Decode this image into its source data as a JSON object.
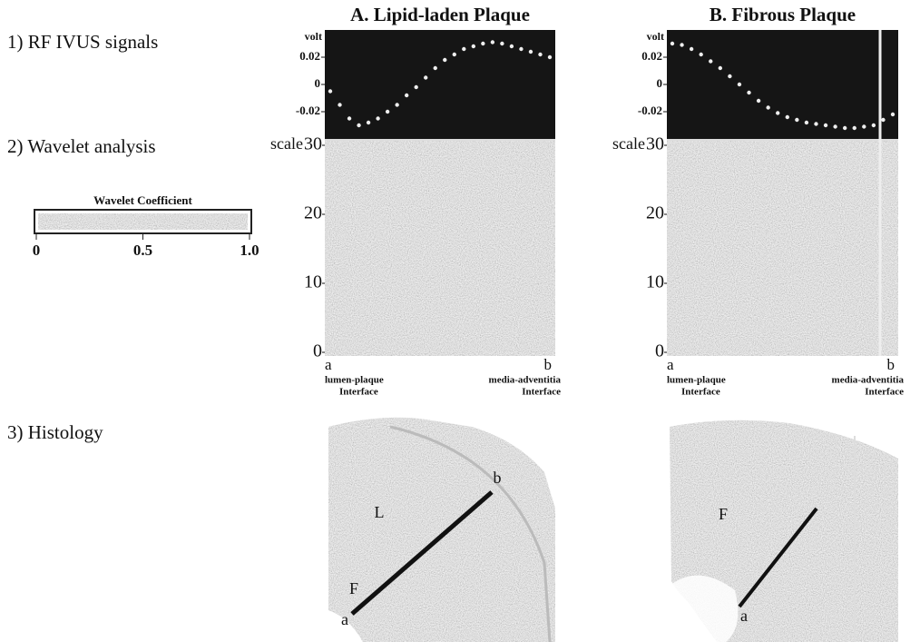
{
  "row_labels": [
    "1) RF IVUS signals",
    "2) Wavelet analysis",
    "3) Histology"
  ],
  "colorbar": {
    "title": "Wavelet Coefficient",
    "ticks": [
      0,
      0.5,
      {
        "value": 1,
        "label": "1.0"
      }
    ],
    "lim": [
      0,
      1
    ]
  },
  "panels": [
    {
      "title": "A.  Lipid-laden Plaque",
      "rf": {
        "ylabel": "volt",
        "ylim": [
          -0.04,
          0.04
        ],
        "yticks": [
          0.02,
          0,
          -0.02
        ],
        "values": [
          -0.005,
          -0.015,
          -0.025,
          -0.03,
          -0.028,
          -0.025,
          -0.02,
          -0.015,
          -0.008,
          -0.002,
          0.005,
          0.012,
          0.018,
          0.022,
          0.026,
          0.028,
          0.03,
          0.031,
          0.03,
          0.028,
          0.026,
          0.024,
          0.022,
          0.02
        ]
      },
      "wavelet": {
        "ylabel": "scale",
        "ylim": [
          0,
          30
        ],
        "yticks": [
          0,
          10,
          20,
          30
        ],
        "start": "a",
        "end": "b",
        "start_label": [
          "lumen-plaque",
          "Interface"
        ],
        "end_label": [
          "media-adventitia",
          "Interface"
        ]
      },
      "histology": {
        "labels": [
          "b",
          "L",
          "F",
          "a"
        ]
      }
    },
    {
      "title": "B.  Fibrous Plaque",
      "rf": {
        "ylabel": "volt",
        "ylim": [
          -0.04,
          0.04
        ],
        "yticks": [
          0.02,
          0,
          -0.02
        ],
        "values": [
          0.03,
          0.029,
          0.026,
          0.022,
          0.017,
          0.012,
          0.006,
          0,
          -0.006,
          -0.012,
          -0.017,
          -0.021,
          -0.024,
          -0.026,
          -0.028,
          -0.029,
          -0.03,
          -0.031,
          -0.032,
          -0.032,
          -0.031,
          -0.03,
          -0.026,
          -0.022
        ]
      },
      "wavelet": {
        "ylabel": "scale",
        "ylim": [
          0,
          30
        ],
        "yticks": [
          0,
          10,
          20,
          30
        ],
        "start": "a",
        "end": "b",
        "start_label": [
          "lumen-plaque",
          "Interface"
        ],
        "end_label": [
          "media-adventitia",
          "Interface"
        ]
      },
      "histology": {
        "labels": [
          "F",
          "a"
        ]
      }
    }
  ]
}
